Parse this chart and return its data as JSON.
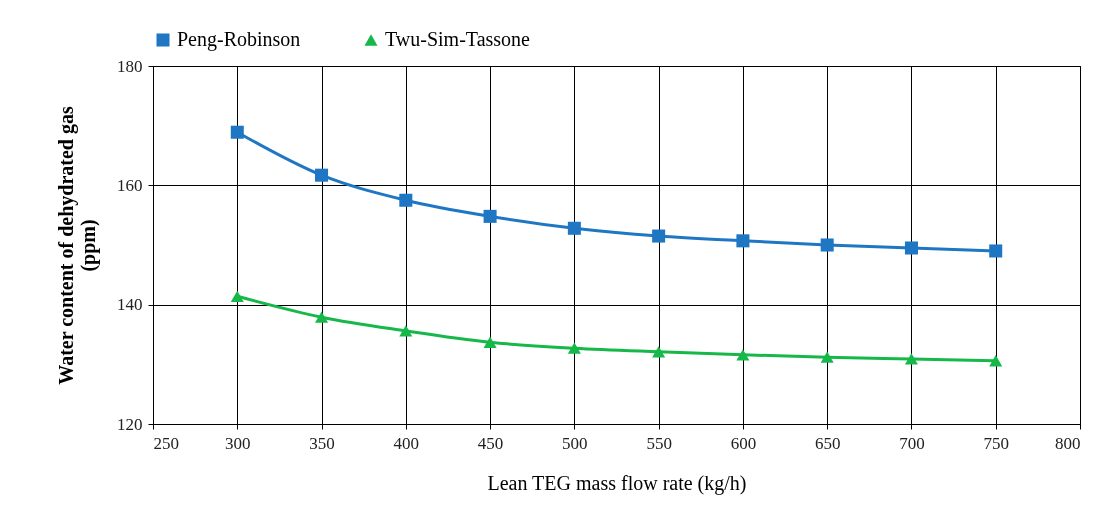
{
  "chart_data": {
    "type": "line",
    "xlabel": "Lean TEG mass flow rate (kg/h)",
    "ylabel": "Water content of dehydrated gas (ppm)",
    "x": [
      300,
      350,
      400,
      450,
      500,
      550,
      600,
      650,
      700,
      750
    ],
    "series": [
      {
        "name": "Peng-Robinson",
        "color": "#1f77c4",
        "marker": "square",
        "values": [
          168.9,
          161.7,
          157.5,
          154.8,
          152.8,
          151.5,
          150.7,
          150.0,
          149.5,
          149.0
        ]
      },
      {
        "name": "Twu-Sim-Tassone",
        "color": "#16b84a",
        "marker": "triangle",
        "values": [
          141.4,
          137.9,
          135.6,
          133.7,
          132.7,
          132.1,
          131.6,
          131.2,
          130.9,
          130.6
        ]
      }
    ],
    "xlim": [
      250,
      800
    ],
    "xticks": [
      250,
      300,
      350,
      400,
      450,
      500,
      550,
      600,
      650,
      700,
      750,
      800
    ],
    "ylim": [
      120,
      180
    ],
    "yticks": [
      120,
      140,
      160,
      180
    ],
    "grid": true,
    "legend": "top",
    "line_style": "solid"
  }
}
